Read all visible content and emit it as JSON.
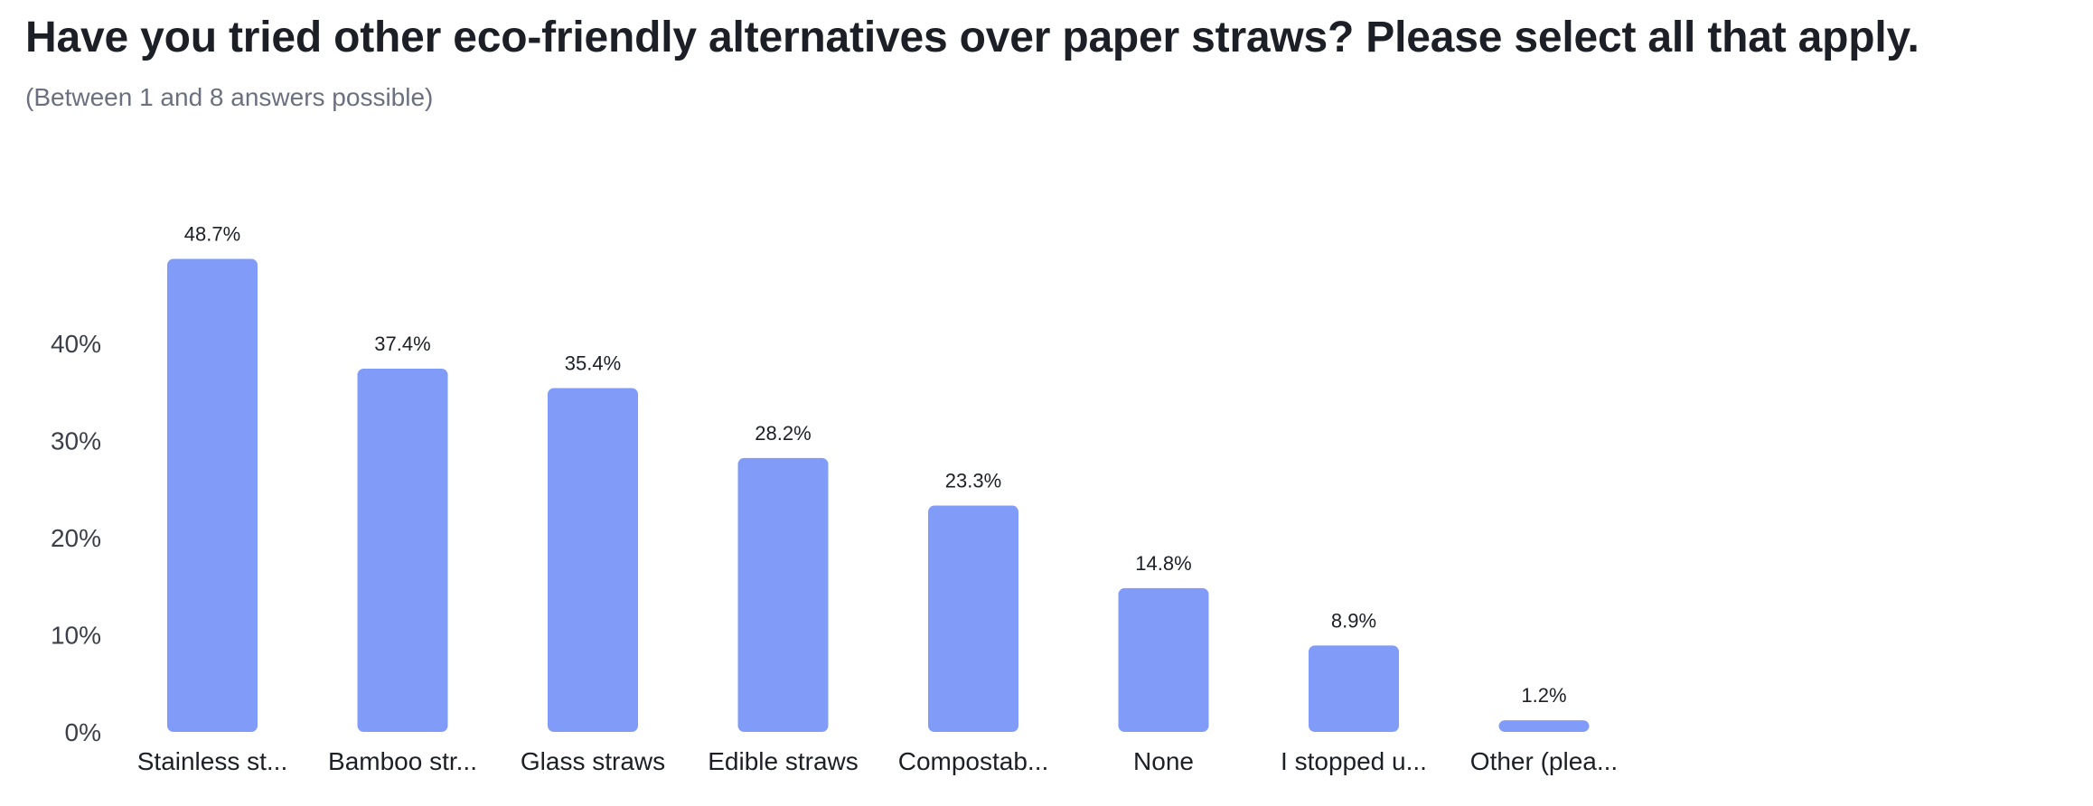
{
  "question": {
    "title": "Have you tried other eco-friendly alternatives over paper straws? Please select all that apply.",
    "subtitle": "(Between 1 and 8 answers possible)"
  },
  "colors": {
    "bar": "#819cf8",
    "text": "#1c1f26",
    "axis_text": "#3b3f4a",
    "subtitle": "#6b7080"
  },
  "chart_data": {
    "type": "bar",
    "title": "Have you tried other eco-friendly alternatives over paper straws? Please select all that apply.",
    "subtitle": "(Between 1 and 8 answers possible)",
    "categories": [
      "Stainless st...",
      "Bamboo str...",
      "Glass straws",
      "Edible straws",
      "Compostab...",
      "None",
      "I stopped u...",
      "Other (plea..."
    ],
    "values": [
      48.7,
      37.4,
      35.4,
      28.2,
      23.3,
      14.8,
      8.9,
      1.2
    ],
    "value_labels": [
      "48.7%",
      "37.4%",
      "35.4%",
      "28.2%",
      "23.3%",
      "14.8%",
      "8.9%",
      "1.2%"
    ],
    "yticks": [
      0,
      10,
      20,
      30,
      40
    ],
    "ytick_labels": [
      "0%",
      "10%",
      "20%",
      "30%",
      "40%"
    ],
    "ylim": [
      0,
      50
    ],
    "xlabel": "",
    "ylabel": "",
    "grid": false,
    "legend": false
  }
}
